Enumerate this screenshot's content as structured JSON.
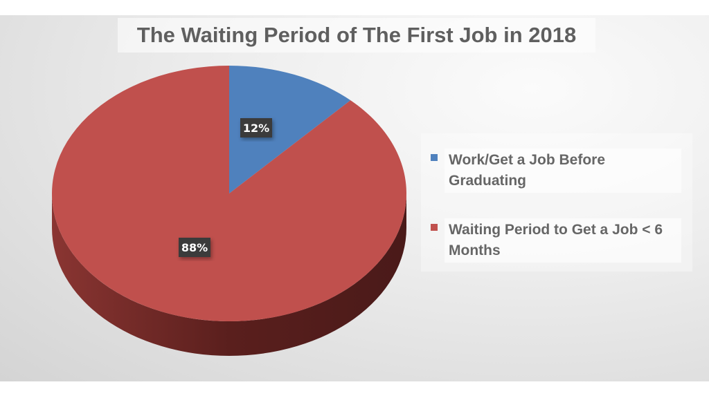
{
  "chart_data": {
    "type": "pie",
    "title": "The Waiting Period of The First Job in 2018",
    "style": "3d",
    "legend_position": "right",
    "slices": [
      {
        "label": "Work/Get a Job Before Graduating",
        "value": 12,
        "data_label": "12%",
        "color": "#4f81bd"
      },
      {
        "label": "Waiting Period to Get a Job < 6 Months",
        "value": 88,
        "data_label": "88%",
        "color": "#c0504d"
      }
    ]
  }
}
